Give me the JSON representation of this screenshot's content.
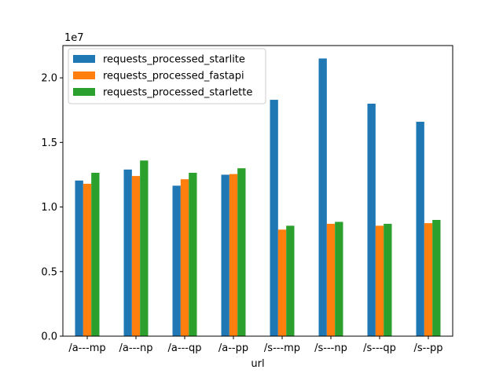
{
  "chart_data": {
    "type": "bar",
    "categories": [
      "/a---mp",
      "/a---np",
      "/a---qp",
      "/a--pp",
      "/s---mp",
      "/s---np",
      "/s---qp",
      "/s--pp"
    ],
    "series": [
      {
        "name": "requests_processed_starlite",
        "color": "#1f77b4",
        "values": [
          12.05,
          12.9,
          11.65,
          12.5,
          18.3,
          21.5,
          18.0,
          16.6
        ]
      },
      {
        "name": "requests_processed_fastapi",
        "color": "#ff7f0e",
        "values": [
          11.8,
          12.4,
          12.15,
          12.55,
          8.25,
          8.7,
          8.55,
          8.75
        ]
      },
      {
        "name": "requests_processed_starlette",
        "color": "#2ca02c",
        "values": [
          12.65,
          13.6,
          12.65,
          13.0,
          8.55,
          8.85,
          8.7,
          9.0
        ]
      }
    ],
    "xlabel": "url",
    "ylabel": "",
    "y_scale_label": "1e7",
    "ylim": [
      0,
      22.5
    ],
    "yticks": [
      0.0,
      0.5,
      1.0,
      1.5,
      2.0
    ],
    "ytick_labels": [
      "0.0",
      "0.5",
      "1.0",
      "1.5",
      "2.0"
    ],
    "ytick_values": [
      0,
      5,
      10,
      15,
      20
    ],
    "legend_position": "top-left",
    "grid": false
  }
}
